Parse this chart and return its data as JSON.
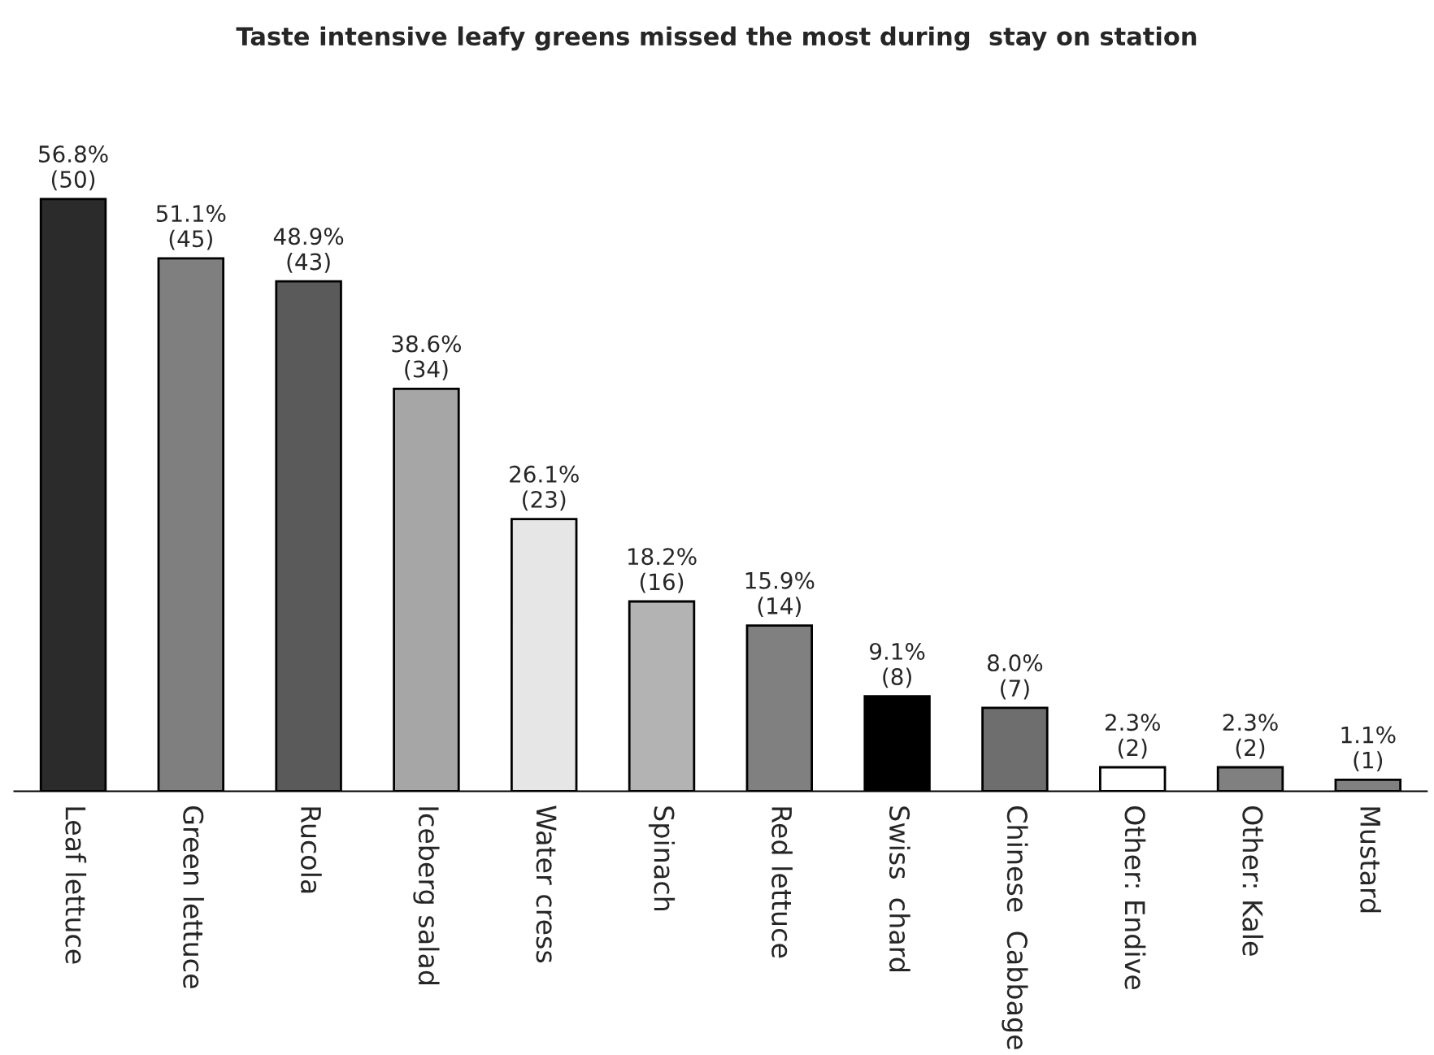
{
  "chart_data": {
    "type": "bar",
    "title": "Taste intensive leafy greens missed the most during  stay on station",
    "categories": [
      "Leaf lettuce",
      "Green lettuce",
      "Rucola",
      "Iceberg salad",
      "Water cress",
      "Spinach",
      "Red lettuce",
      "Swiss  chard",
      "Chinese  Cabbage",
      "Other: Endive",
      "Other: Kale",
      "Mustard"
    ],
    "values": [
      56.8,
      51.1,
      48.9,
      38.6,
      26.1,
      18.2,
      15.9,
      9.1,
      8.0,
      2.3,
      2.3,
      1.1
    ],
    "value_labels": [
      "56.8%\n(50)",
      "51.1%\n(45)",
      "48.9%\n(43)",
      "38.6%\n(34)",
      "26.1%\n(23)",
      "18.2%\n(16)",
      "15.9%\n(14)",
      "9.1%\n(8)",
      "8.0%\n(7)",
      "2.3%\n(2)",
      "2.3%\n(2)",
      "1.1%\n(1)"
    ],
    "colors": [
      "#2b2b2b",
      "#7f7f7f",
      "#5a5a5a",
      "#a6a6a6",
      "#e6e6e6",
      "#b3b3b3",
      "#808080",
      "#000000",
      "#6e6e6e",
      "#ffffff",
      "#808080",
      "#808080"
    ],
    "grid": false,
    "legend": false
  }
}
